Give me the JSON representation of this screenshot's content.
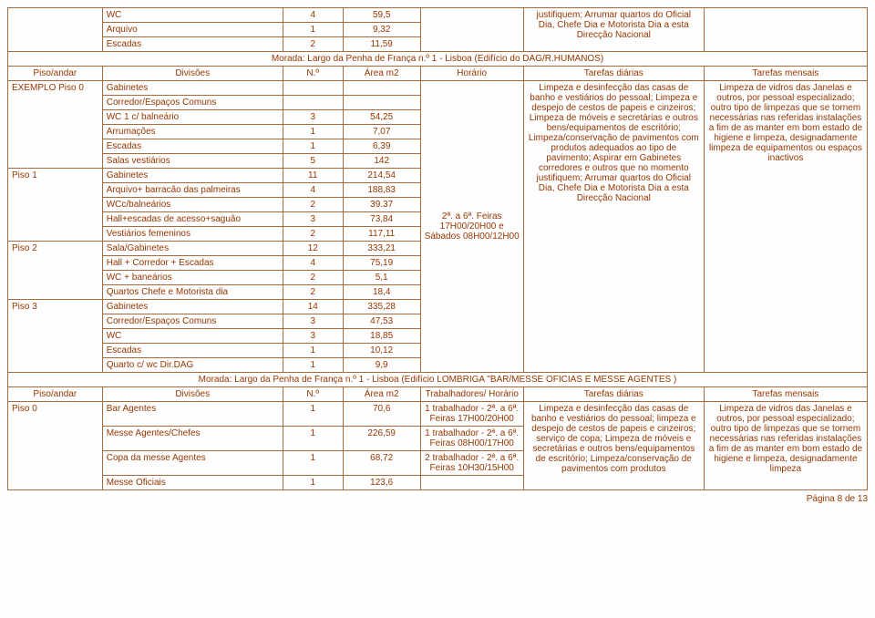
{
  "top_rows": [
    {
      "div": "WC",
      "n": "4",
      "area": "59,5"
    },
    {
      "div": "Arquivo",
      "n": "1",
      "area": "9,32"
    },
    {
      "div": "Escadas",
      "n": "2",
      "area": "11,59"
    }
  ],
  "top_task": "justifiquem; Arrumar quartos do Oficial Dia, Chefe Dia e Motorista Dia a esta Direcção Nacional",
  "address1": "Morada: Largo da Penha de França n.º 1 - Lisboa (Edifício do DAG/R.HUMANOS)",
  "hdr1": {
    "c0": "Piso/andar",
    "c1": "Divisões",
    "c2": "N.º",
    "c3": "Área m2",
    "c4": "Horário",
    "c5": "Tarefas diárias",
    "c6": "Tarefas mensais"
  },
  "sec1": {
    "pisos": [
      {
        "piso": "EXEMPLO Piso 0",
        "rows": [
          {
            "div": "Gabinetes",
            "n": "",
            "area": ""
          },
          {
            "div": "Corredor/Espaços Comuns",
            "n": "",
            "area": ""
          },
          {
            "div": "WC 1 c/ balneário",
            "n": "3",
            "area": "54,25"
          },
          {
            "div": "Arrumações",
            "n": "1",
            "area": "7,07"
          },
          {
            "div": "Escadas",
            "n": "1",
            "area": "6,39"
          },
          {
            "div": "Salas vestiários",
            "n": "5",
            "area": "142"
          }
        ]
      },
      {
        "piso": "Piso 1",
        "rows": [
          {
            "div": "Gabinetes",
            "n": "11",
            "area": "214,54"
          },
          {
            "div": "Arquivo+ barracão das palmeiras",
            "n": "4",
            "area": "188,83"
          },
          {
            "div": "WCc/balneários",
            "n": "2",
            "area": "39.37"
          },
          {
            "div": "Hall+escadas de acesso+saguão",
            "n": "3",
            "area": "73,84"
          },
          {
            "div": "Vestiários femeninos",
            "n": "2",
            "area": "117,11"
          }
        ]
      },
      {
        "piso": "Piso 2",
        "rows": [
          {
            "div": "Sala/Gabinetes",
            "n": "12",
            "area": "333,21"
          },
          {
            "div": "Hall + Corredor + Escadas",
            "n": "4",
            "area": "75,19"
          },
          {
            "div": "WC + baneários",
            "n": "2",
            "area": "5,1"
          },
          {
            "div": "Quartos Chefe e Motorista dia",
            "n": "2",
            "area": "18,4"
          }
        ]
      },
      {
        "piso": "Piso 3",
        "rows": [
          {
            "div": "Gabinetes",
            "n": "14",
            "area": "335,28"
          },
          {
            "div": "Corredor/Espaços Comuns",
            "n": "3",
            "area": "47,53"
          },
          {
            "div": "WC",
            "n": "3",
            "area": "18,85"
          },
          {
            "div": "Escadas",
            "n": "1",
            "area": "10,12"
          },
          {
            "div": "Quarto c/ wc Dir.DAG",
            "n": "1",
            "area": "9,9"
          }
        ]
      }
    ],
    "horario": "2ª. a 6ª. Feiras 17H00/20H00     e Sábados 08H00/12H00",
    "diarias": "Limpeza e desinfecção das casas de banho e vestiários do pessoal; Limpeza e despejo de cestos de papeis e cinzeiros; Limpeza de móveis e secretárias e outros bens/equipamentos de escritório; Limpeza/conservação de pavimentos com produtos adequados ao tipo de pavimento; Aspirar em Gabinetes corredores e outros que no momento justifiquem; Arrumar quartos do Oficial Dia, Chefe Dia e Motorista Dia a esta Direcção Nacional",
    "mensais": "Limpeza de vidros das Janelas e outros, por pessoal especializado; outro tipo de limpezas que se tornem necessárias nas referidas instalações a fim de as manter em bom estado de higiene e limpeza, designadamente limpeza de equipamentos ou espaços inactivos"
  },
  "address2": "Morada: Largo da Penha de França n.º 1 - Lisboa (Edifício LOMBRIGA \"BAR/MESSE OFICIAS E MESSE AGENTES )",
  "hdr2": {
    "c0": "Piso/andar",
    "c1": "Divisões",
    "c2": "N.º",
    "c3": "Área m2",
    "c4": "Trabalhadores/ Horário",
    "c5": "Tarefas diárias",
    "c6": "Tarefas mensais"
  },
  "sec2": {
    "piso": "Piso 0",
    "rows": [
      {
        "div": "Bar Agentes",
        "n": "1",
        "area": "70,6",
        "h": "1 trabalhador - 2ª. a 6ª. Feiras 17H00/20H00"
      },
      {
        "div": "Messe Agentes/Chefes",
        "n": "1",
        "area": "226,59",
        "h": "1 trabalhador - 2ª. a 6ª. Feiras 08H00/17H00"
      },
      {
        "div": "Copa da messe Agentes",
        "n": "1",
        "area": "68,72",
        "h": "2 trabalhador - 2ª. a 6ª. Feiras 10H30/15H00"
      },
      {
        "div": "Messe Oficiais",
        "n": "1",
        "area": "123,6",
        "h": ""
      }
    ],
    "diarias": "Limpeza e desinfecção das casas de banho e vestiários do pessoal; limpeza e despejo de cestos de papeis e cinzeiros; serviço de copa; Limpeza de móveis e secretárias e outros bens/equipamentos de escritório; Limpeza/conservação de pavimentos com produtos",
    "mensais": "Limpeza de vidros das Janelas e outros, por pessoal especializado; outro tipo de limpezas que se tornem necessárias nas referidas instalações a fim de as manter em bom estado de higiene e limpeza, designadamente limpeza"
  },
  "footer": "Página 8 de 13"
}
